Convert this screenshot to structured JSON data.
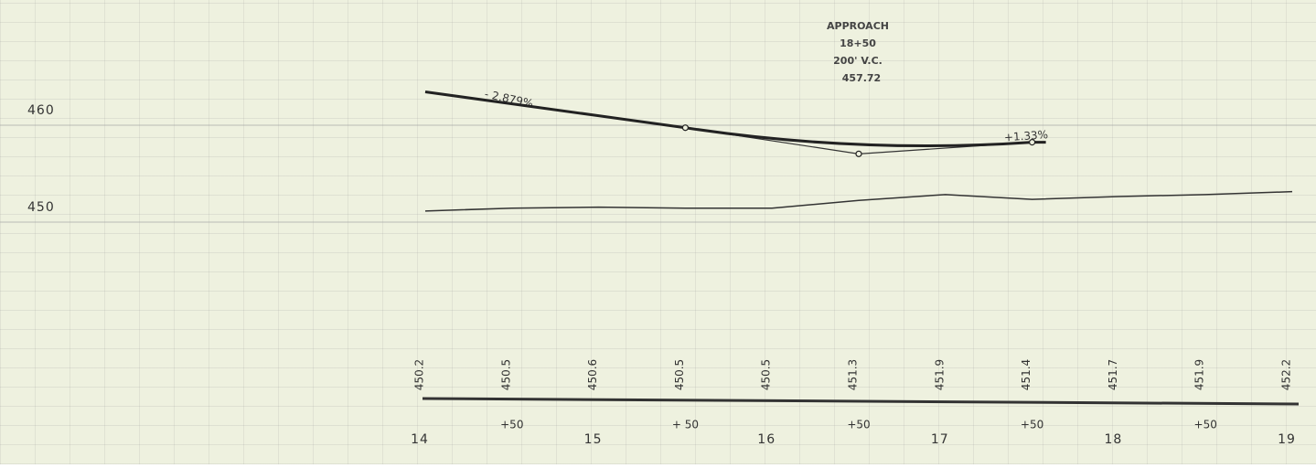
{
  "y_axis": {
    "ticks": [
      450,
      460
    ]
  },
  "stations": {
    "labels": [
      "14",
      "15",
      "16",
      "17",
      "18",
      "19"
    ],
    "plus_labels": [
      "+50",
      "+ 50",
      "+50",
      "+50",
      "+50"
    ]
  },
  "ground_elevations": [
    450.2,
    450.5,
    450.6,
    450.5,
    450.5,
    451.3,
    451.9,
    451.4,
    451.7,
    451.9,
    452.2
  ],
  "grade_line": {
    "stations": [
      14,
      15.5,
      16.5,
      17.5
    ],
    "elevations": [
      462.5,
      458.8,
      456.1,
      457.3
    ]
  },
  "annotations": {
    "approach": [
      "APPROACH",
      "18+50",
      "200' V.C.",
      "457.72"
    ],
    "grade_left": "- 2.879%",
    "grade_right": "+1.33%"
  }
}
